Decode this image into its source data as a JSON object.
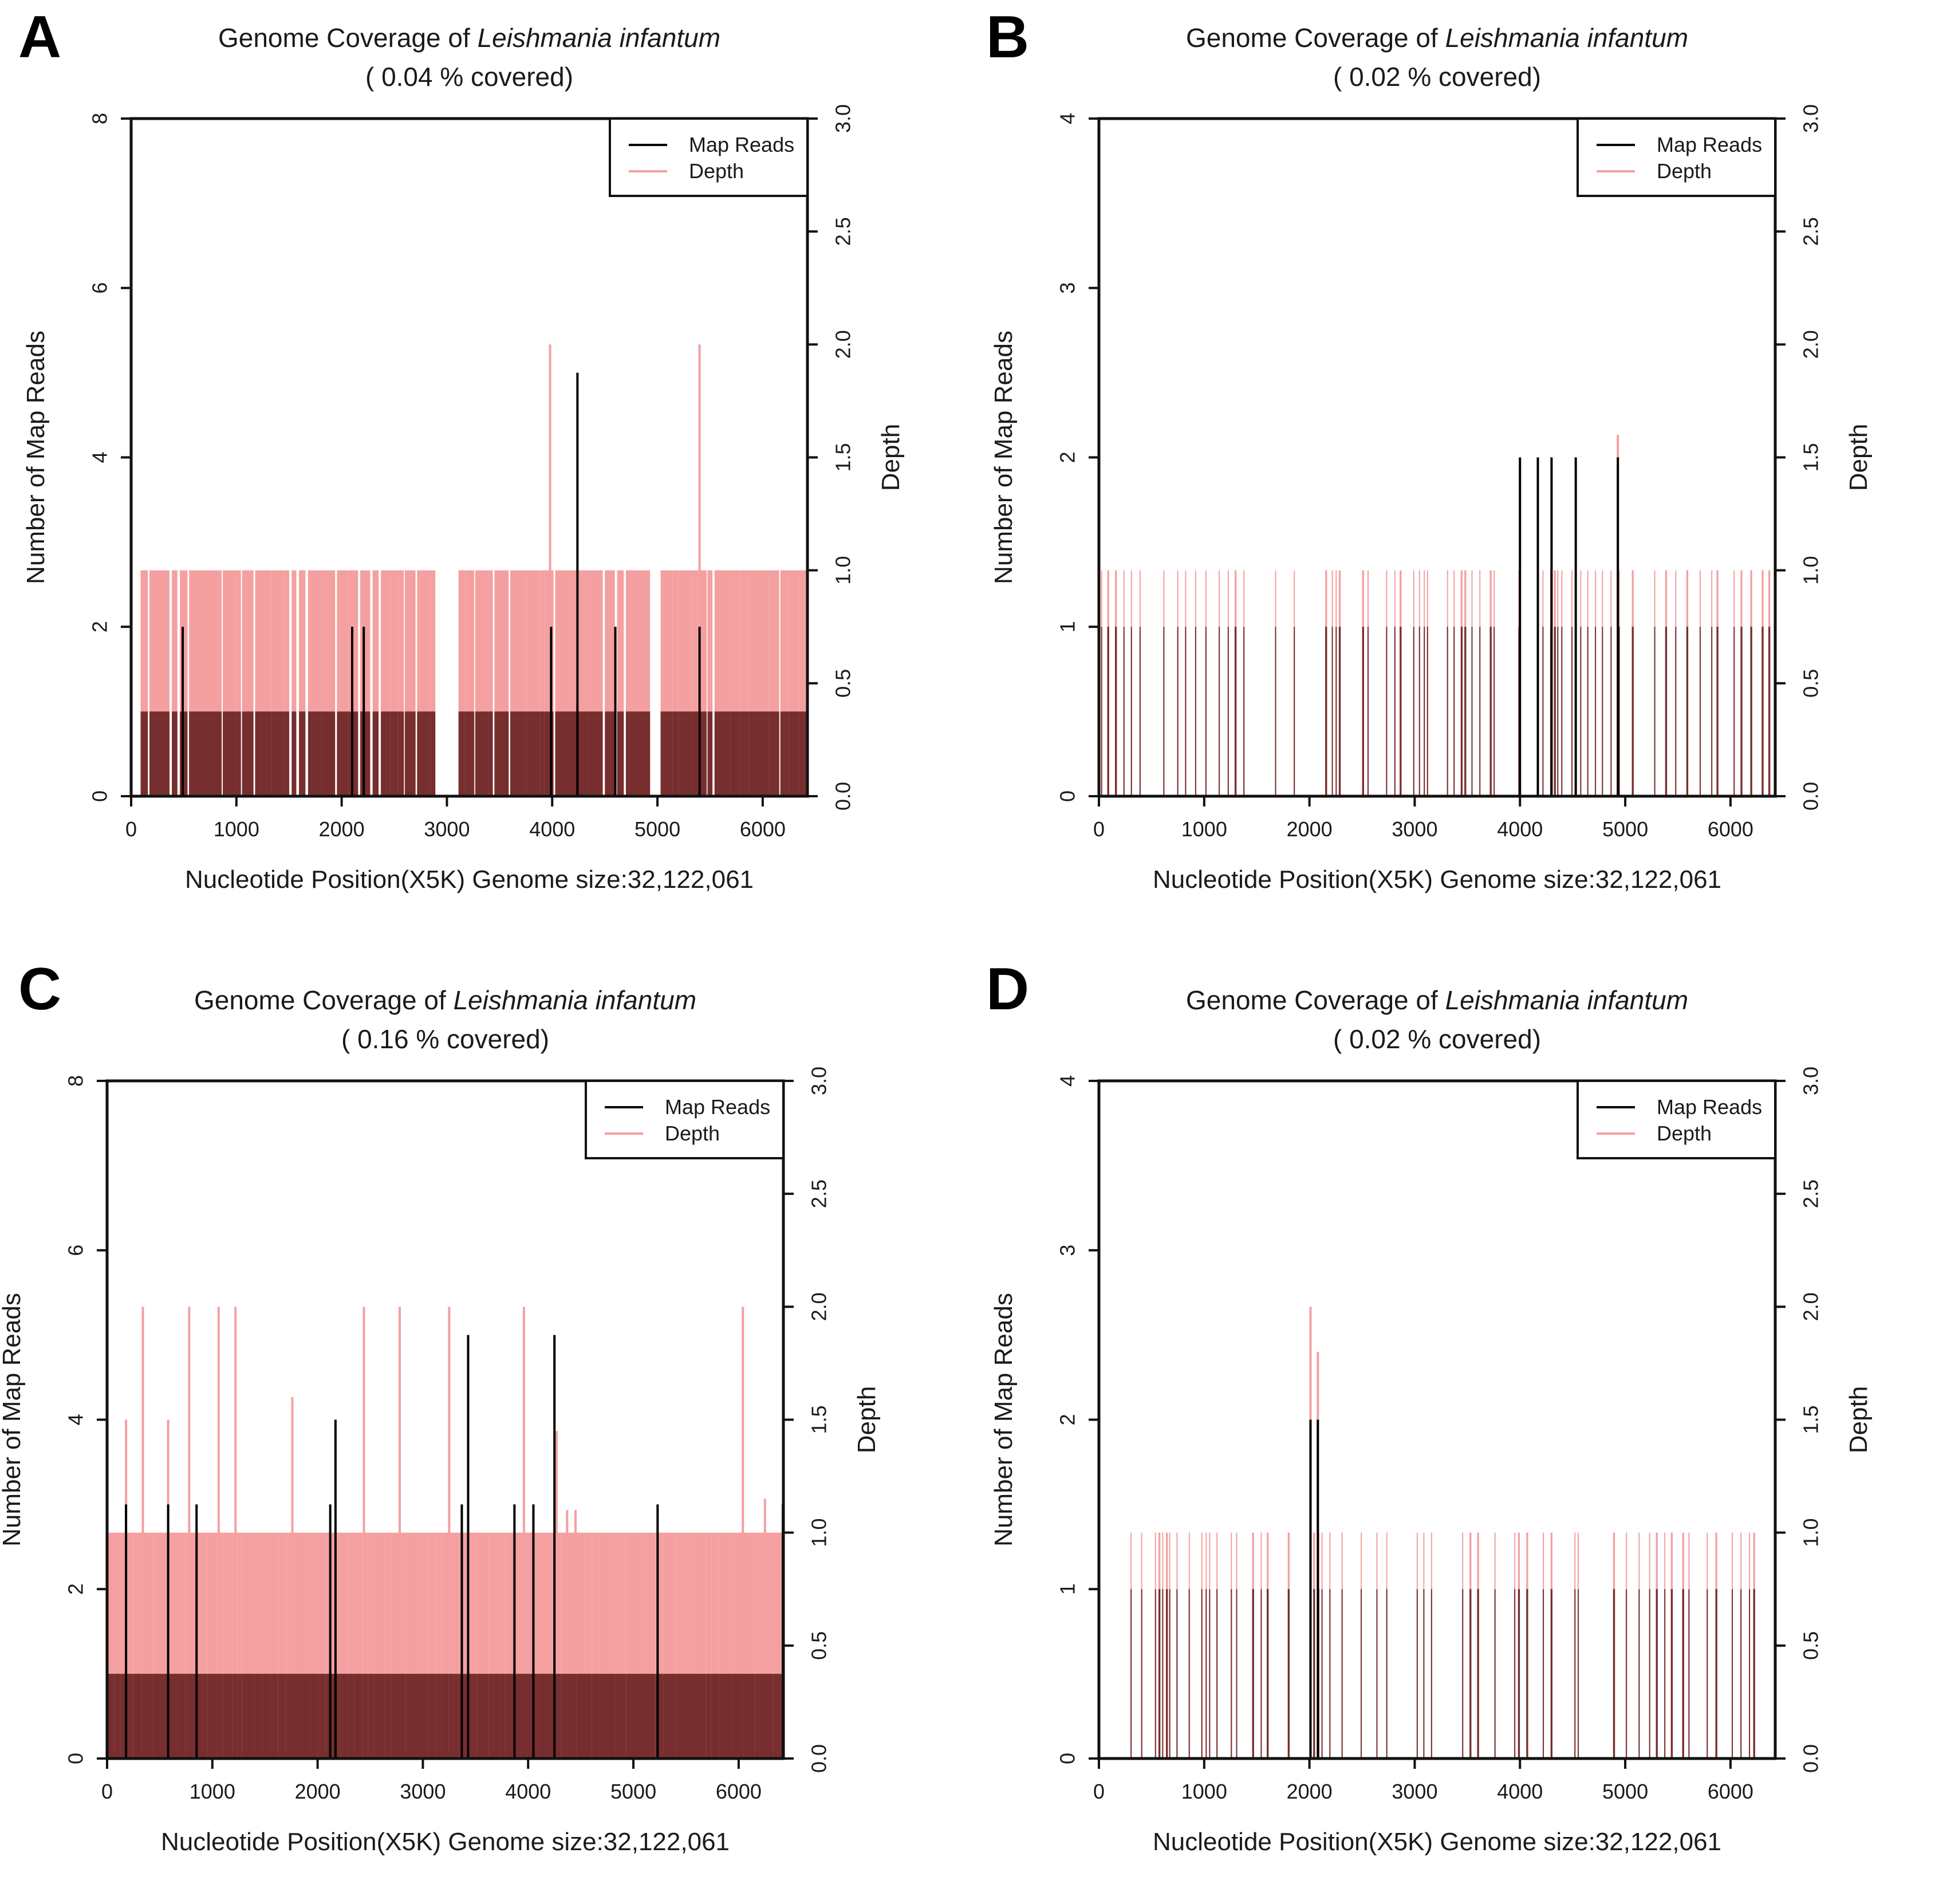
{
  "figure": {
    "panels": [
      "A",
      "B",
      "C",
      "D"
    ]
  },
  "chart_data": [
    {
      "panel": "A",
      "type": "bar",
      "title": "Genome Coverage of",
      "title_species": "Leishmania infantum",
      "subtitle": "( 0.04 % covered)",
      "xlabel": "Nucleotide Position(X5K) Genome size:32,122,061",
      "ylabel": "Number of Map Reads",
      "y2label": "Depth",
      "xlim": [
        0,
        6425
      ],
      "ylim": [
        0,
        8
      ],
      "y2lim": [
        0,
        3.0
      ],
      "xticks": [
        "0",
        "1000",
        "2000",
        "3000",
        "4000",
        "5000",
        "6000"
      ],
      "yticks": [
        "0",
        "2",
        "4",
        "6",
        "8"
      ],
      "y2ticks": [
        "0.0",
        "0.5",
        "1.0",
        "1.5",
        "2.0",
        "2.5",
        "3.0"
      ],
      "legend": [
        "Map Reads",
        "Depth"
      ],
      "legend_position": "top-right",
      "colors": {
        "reads": "#000000",
        "depth": "#f4a0a0",
        "overlap": "#772e2e"
      },
      "base_reads": 1,
      "base_depth": 1.0,
      "coverage_intervals": [
        [
          90,
          2890
        ],
        [
          3110,
          4680
        ],
        [
          4700,
          4930
        ],
        [
          5030,
          6425
        ]
      ],
      "gap_density": 0.4,
      "read_peaks": [
        [
          490,
          2
        ],
        [
          2100,
          2
        ],
        [
          2210,
          2
        ],
        [
          3990,
          2
        ],
        [
          4240,
          5
        ],
        [
          4600,
          2
        ],
        [
          5400,
          2
        ]
      ],
      "depth_peaks": [
        [
          3980,
          2.0
        ],
        [
          5400,
          2.0
        ]
      ],
      "seed": 11
    },
    {
      "panel": "B",
      "type": "bar",
      "title": "Genome Coverage of",
      "title_species": "Leishmania infantum",
      "subtitle": "( 0.02 % covered)",
      "xlabel": "Nucleotide Position(X5K) Genome size:32,122,061",
      "ylabel": "Number of Map Reads",
      "y2label": "Depth",
      "xlim": [
        0,
        6425
      ],
      "ylim": [
        0,
        4
      ],
      "y2lim": [
        0,
        3.0
      ],
      "xticks": [
        "0",
        "1000",
        "2000",
        "3000",
        "4000",
        "5000",
        "6000"
      ],
      "yticks": [
        "0",
        "1",
        "2",
        "3",
        "4"
      ],
      "y2ticks": [
        "0.0",
        "0.5",
        "1.0",
        "1.5",
        "2.0",
        "2.5",
        "3.0"
      ],
      "legend": [
        "Map Reads",
        "Depth"
      ],
      "legend_position": "top-right",
      "colors": {
        "reads": "#000000",
        "depth": "#f4a0a0",
        "overlap": "#772e2e"
      },
      "base_reads": 1,
      "base_depth": 1.0,
      "density": 0.55,
      "read_peaks": [
        [
          4000,
          2
        ],
        [
          4170,
          2
        ],
        [
          4300,
          2
        ],
        [
          4530,
          2
        ],
        [
          4930,
          2
        ]
      ],
      "depth_peaks": [
        [
          4930,
          1.6
        ]
      ],
      "seed": 23
    },
    {
      "panel": "C",
      "type": "bar",
      "title": "Genome Coverage of",
      "title_species": "Leishmania infantum",
      "subtitle": "( 0.16 % covered)",
      "xlabel": "Nucleotide Position(X5K) Genome size:32,122,061",
      "ylabel": "Number of Map Reads",
      "y2label": "Depth",
      "xlim": [
        0,
        6425
      ],
      "ylim": [
        0,
        8
      ],
      "y2lim": [
        0,
        3.0
      ],
      "xticks": [
        "0",
        "1000",
        "2000",
        "3000",
        "4000",
        "5000",
        "6000"
      ],
      "yticks": [
        "0",
        "2",
        "4",
        "6",
        "8"
      ],
      "y2ticks": [
        "0.0",
        "0.5",
        "1.0",
        "1.5",
        "2.0",
        "2.5",
        "3.0"
      ],
      "legend": [
        "Map Reads",
        "Depth"
      ],
      "legend_position": "top-right",
      "colors": {
        "reads": "#000000",
        "depth": "#f4a0a0",
        "overlap": "#772e2e"
      },
      "base_reads": 1,
      "base_depth": 1.0,
      "coverage_intervals": [
        [
          0,
          6425
        ]
      ],
      "gap_density": 0.0,
      "read_peaks": [
        [
          180,
          3
        ],
        [
          580,
          3
        ],
        [
          850,
          3
        ],
        [
          2120,
          3
        ],
        [
          2170,
          4
        ],
        [
          3370,
          3
        ],
        [
          3430,
          5
        ],
        [
          3870,
          3
        ],
        [
          4050,
          3
        ],
        [
          4250,
          5
        ],
        [
          5230,
          3
        ],
        [
          6420,
          3
        ]
      ],
      "depth_peaks": [
        [
          180,
          1.5
        ],
        [
          340,
          2.0
        ],
        [
          580,
          1.5
        ],
        [
          780,
          2.0
        ],
        [
          1060,
          2.0
        ],
        [
          1220,
          2.0
        ],
        [
          1760,
          1.6
        ],
        [
          2440,
          2.0
        ],
        [
          2780,
          2.0
        ],
        [
          3250,
          2.0
        ],
        [
          3960,
          2.0
        ],
        [
          4270,
          1.45
        ],
        [
          4370,
          1.1
        ],
        [
          4450,
          1.1
        ],
        [
          6040,
          2.0
        ],
        [
          6250,
          1.15
        ]
      ],
      "seed": 37
    },
    {
      "panel": "D",
      "type": "bar",
      "title": "Genome Coverage of",
      "title_species": "Leishmania infantum",
      "subtitle": "( 0.02 % covered)",
      "xlabel": "Nucleotide Position(X5K) Genome size:32,122,061",
      "ylabel": "Number of Map Reads",
      "y2label": "Depth",
      "xlim": [
        0,
        6425
      ],
      "ylim": [
        0,
        4
      ],
      "y2lim": [
        0,
        3.0
      ],
      "xticks": [
        "0",
        "1000",
        "2000",
        "3000",
        "4000",
        "5000",
        "6000"
      ],
      "yticks": [
        "0",
        "1",
        "2",
        "3",
        "4"
      ],
      "y2ticks": [
        "0.0",
        "0.5",
        "1.0",
        "1.5",
        "2.0",
        "2.5",
        "3.0"
      ],
      "legend": [
        "Map Reads",
        "Depth"
      ],
      "legend_position": "top-right",
      "colors": {
        "reads": "#000000",
        "depth": "#f4a0a0",
        "overlap": "#772e2e"
      },
      "base_reads": 1,
      "base_depth": 1.0,
      "density": 0.45,
      "start": 300,
      "read_peaks": [
        [
          2010,
          2
        ],
        [
          2080,
          2
        ]
      ],
      "depth_peaks": [
        [
          2010,
          2.0
        ],
        [
          2080,
          1.8
        ]
      ],
      "seed": 53
    }
  ]
}
